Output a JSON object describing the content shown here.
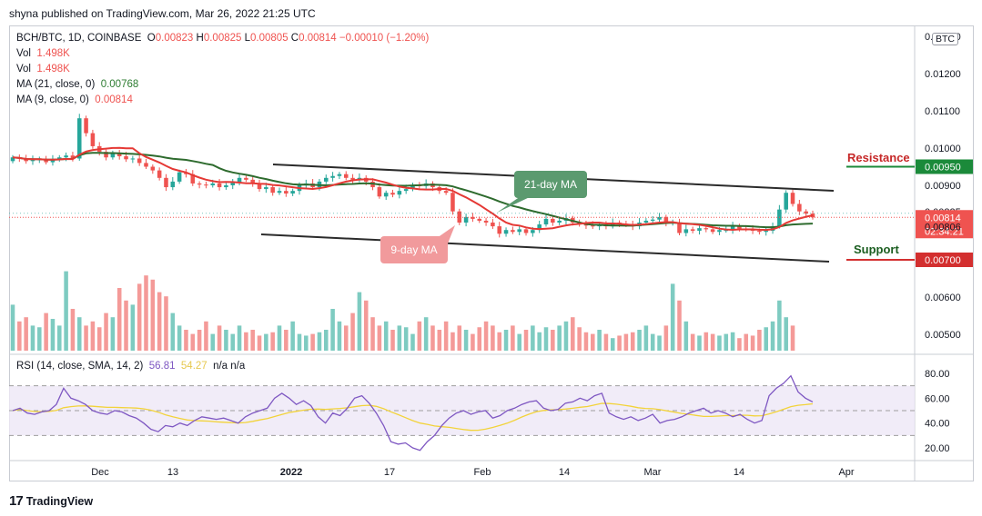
{
  "publisher": "shyna published on TradingView.com, Mar 26, 2022 21:25 UTC",
  "footer_brand": "TradingView",
  "currency_button": "BTC",
  "legend": {
    "symbol": "BCH/BTC, 1D, COINBASE",
    "o_label": "O",
    "o_value": "0.00823",
    "h_label": "H",
    "h_value": "0.00825",
    "l_label": "L",
    "l_value": "0.00805",
    "c_label": "C",
    "c_value": "0.00814",
    "change": "−0.00010 (−1.20%)",
    "vol1_label": "Vol",
    "vol1_value": "1.498K",
    "vol2_label": "Vol",
    "vol2_value": "1.498K",
    "ma21_label": "MA (21, close, 0)",
    "ma21_value": "0.00768",
    "ma9_label": "MA (9, close, 0)",
    "ma9_value": "0.00814",
    "rsi_label": "RSI (14, close, SMA, 14, 2)",
    "rsi_value": "56.81",
    "rsi_sma_value": "54.27",
    "rsi_na": "n/a  n/a"
  },
  "annotations": {
    "ma21": "21-day MA",
    "ma9": "9-day MA",
    "resistance": "Resistance",
    "support": "Support"
  },
  "colors": {
    "up": "#26a69a",
    "down": "#ef5350",
    "ma21": "#2e6b2e",
    "ma9": "#e53935",
    "channel": "#2b2b2b",
    "rsi": "#7e57c2",
    "rsi_sma": "#f2d33a",
    "ma21_tag": "#5b9a6f",
    "ma9_tag": "#f19a9c"
  },
  "chart_data": {
    "type": "candlestick",
    "title": "BCH/BTC, 1D, COINBASE",
    "price_axis": {
      "ticks": [
        "0.01300",
        "0.01200",
        "0.01100",
        "0.01000",
        "0.00900",
        "0.00600",
        "0.00500"
      ],
      "labels": [
        {
          "text": "0.00950",
          "value": 0.0095,
          "style": "resistance"
        },
        {
          "text": "0.00825",
          "value": 0.00825,
          "style": "plain"
        },
        {
          "text": "0.00814",
          "value": 0.00814,
          "style": "last"
        },
        {
          "text": "02:34:21",
          "value": 0.00814,
          "style": "countdown"
        },
        {
          "text": "0.00806",
          "value": 0.00806,
          "style": "plain"
        },
        {
          "text": "0.00700",
          "value": 0.007,
          "style": "support"
        }
      ]
    },
    "x_axis_labels": [
      "Dec",
      "13",
      "2022",
      "17",
      "Feb",
      "14",
      "Mar",
      "14",
      "Apr"
    ],
    "rsi_axis_labels": [
      "80.00",
      "60.00",
      "40.00",
      "20.00"
    ],
    "ohlc_close": [
      0.00975,
      0.00972,
      0.00965,
      0.00968,
      0.0097,
      0.00962,
      0.0097,
      0.00975,
      0.0098,
      0.00972,
      0.0108,
      0.0104,
      0.01005,
      0.0099,
      0.00975,
      0.00985,
      0.00978,
      0.0097,
      0.00972,
      0.0096,
      0.0095,
      0.0094,
      0.0092,
      0.00895,
      0.0091,
      0.00935,
      0.0093,
      0.00905,
      0.00902,
      0.009,
      0.00905,
      0.00895,
      0.009,
      0.00908,
      0.0092,
      0.00915,
      0.00905,
      0.0089,
      0.00895,
      0.0088,
      0.00885,
      0.00878,
      0.00885,
      0.009,
      0.00905,
      0.00895,
      0.0091,
      0.0092,
      0.00925,
      0.0093,
      0.0092,
      0.00915,
      0.0092,
      0.0091,
      0.00895,
      0.0087,
      0.0088,
      0.00875,
      0.00885,
      0.0089,
      0.009,
      0.00898,
      0.00905,
      0.00895,
      0.00885,
      0.0088,
      0.0083,
      0.008,
      0.00815,
      0.0081,
      0.00805,
      0.008,
      0.0079,
      0.0077,
      0.0078,
      0.00775,
      0.00782,
      0.00772,
      0.0078,
      0.00795,
      0.0081,
      0.008,
      0.00805,
      0.00812,
      0.008,
      0.00795,
      0.00792,
      0.0079,
      0.00795,
      0.0079,
      0.008,
      0.00797,
      0.00795,
      0.0079,
      0.008,
      0.00805,
      0.00808,
      0.00815,
      0.008,
      0.008,
      0.00772,
      0.00782,
      0.00778,
      0.00785,
      0.00782,
      0.00775,
      0.0078,
      0.0078,
      0.0079,
      0.00784,
      0.00782,
      0.00778,
      0.00775,
      0.00778,
      0.0079,
      0.00835,
      0.0088,
      0.0085,
      0.0083,
      0.00824,
      0.00814
    ],
    "ma9_values_end": 0.00814,
    "ma21_values_end": 0.00768,
    "volume_relative": [
      0.55,
      0.35,
      0.4,
      0.3,
      0.28,
      0.45,
      0.38,
      0.3,
      0.95,
      0.5,
      0.4,
      0.3,
      0.35,
      0.28,
      0.45,
      0.4,
      0.75,
      0.6,
      0.55,
      0.8,
      0.9,
      0.85,
      0.7,
      0.65,
      0.45,
      0.3,
      0.25,
      0.2,
      0.25,
      0.35,
      0.2,
      0.3,
      0.25,
      0.2,
      0.3,
      0.22,
      0.25,
      0.18,
      0.2,
      0.22,
      0.3,
      0.25,
      0.35,
      0.2,
      0.18,
      0.2,
      0.22,
      0.25,
      0.5,
      0.35,
      0.3,
      0.45,
      0.7,
      0.6,
      0.4,
      0.3,
      0.35,
      0.25,
      0.3,
      0.28,
      0.2,
      0.35,
      0.4,
      0.3,
      0.25,
      0.35,
      0.22,
      0.3,
      0.25,
      0.2,
      0.28,
      0.35,
      0.3,
      0.22,
      0.25,
      0.3,
      0.2,
      0.25,
      0.3,
      0.22,
      0.28,
      0.25,
      0.3,
      0.35,
      0.4,
      0.28,
      0.22,
      0.2,
      0.25,
      0.2,
      0.15,
      0.18,
      0.2,
      0.22,
      0.25,
      0.3,
      0.2,
      0.18,
      0.3,
      0.8,
      0.6,
      0.35,
      0.2,
      0.18,
      0.22,
      0.2,
      0.18,
      0.2,
      0.22,
      0.15,
      0.2,
      0.18,
      0.25,
      0.28,
      0.35,
      0.6,
      0.4,
      0.3
    ],
    "rsi_values": [
      50,
      52,
      48,
      47,
      49,
      50,
      55,
      68,
      60,
      58,
      55,
      50,
      48,
      47,
      50,
      49,
      46,
      44,
      40,
      35,
      33,
      38,
      37,
      40,
      38,
      42,
      45,
      44,
      43,
      44,
      42,
      40,
      45,
      48,
      50,
      52,
      60,
      64,
      60,
      55,
      58,
      54,
      45,
      40,
      48,
      46,
      52,
      60,
      62,
      56,
      48,
      38,
      25,
      23,
      24,
      20,
      18,
      25,
      30,
      38,
      44,
      48,
      50,
      47,
      49,
      50,
      44,
      46,
      50,
      52,
      55,
      57,
      58,
      52,
      50,
      51,
      56,
      57,
      60,
      58,
      62,
      64,
      48,
      45,
      43,
      45,
      42,
      44,
      47,
      40,
      42,
      43,
      45,
      48,
      50,
      52,
      48,
      50,
      48,
      45,
      47,
      43,
      40,
      42,
      62,
      68,
      72,
      78,
      65,
      60,
      57
    ]
  }
}
